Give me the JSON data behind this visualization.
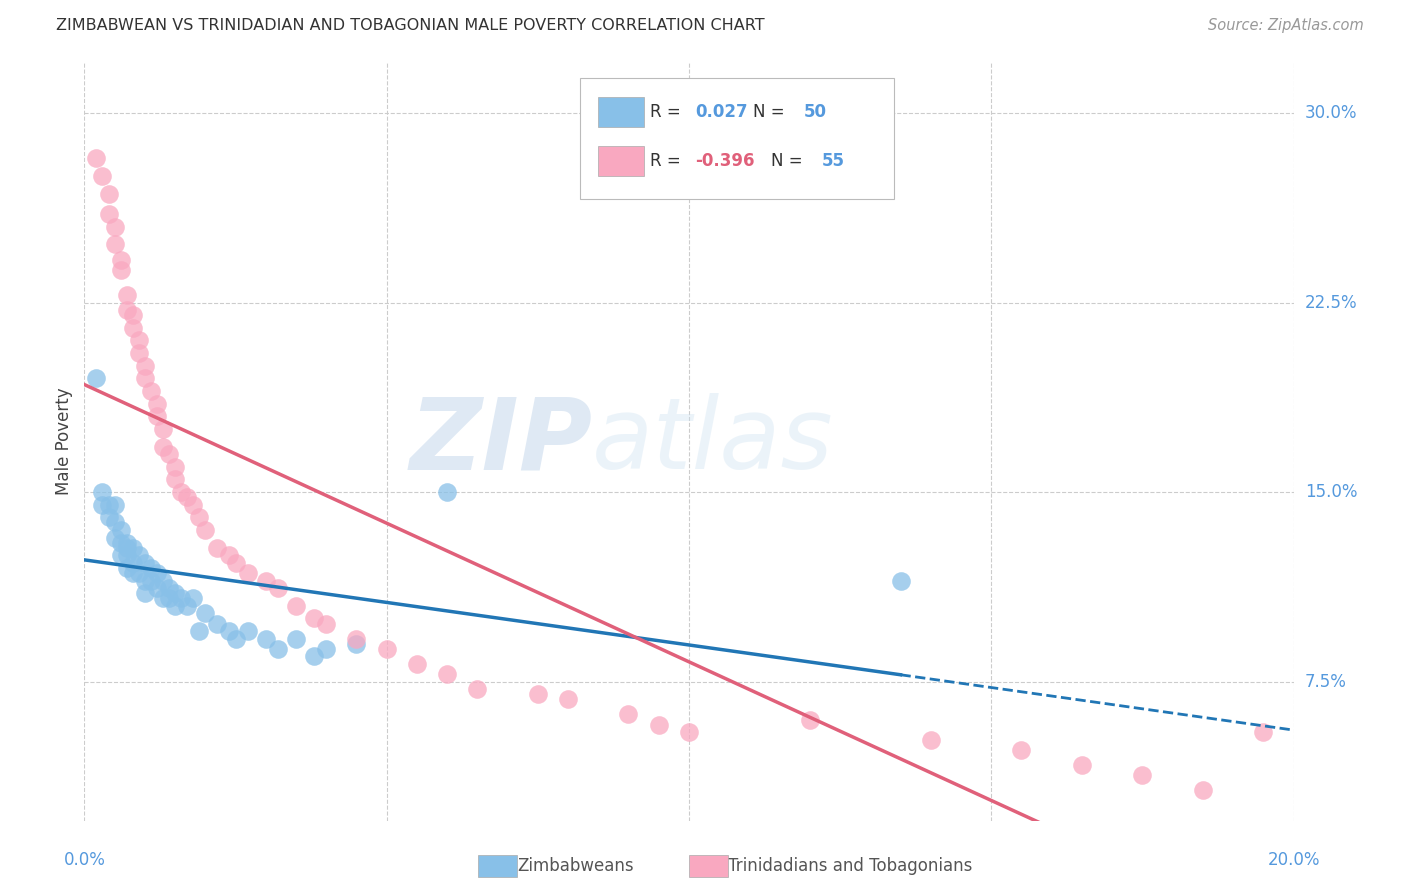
{
  "title": "ZIMBABWEAN VS TRINIDADIAN AND TOBAGONIAN MALE POVERTY CORRELATION CHART",
  "source": "Source: ZipAtlas.com",
  "ylabel": "Male Poverty",
  "ytick_vals": [
    0.075,
    0.15,
    0.225,
    0.3
  ],
  "ytick_labels": [
    "7.5%",
    "15.0%",
    "22.5%",
    "30.0%"
  ],
  "xtick_vals": [
    0.0,
    0.05,
    0.1,
    0.15,
    0.2
  ],
  "xlim": [
    0.0,
    0.2
  ],
  "ylim": [
    0.02,
    0.32
  ],
  "R1": "0.027",
  "N1": "50",
  "R2": "-0.396",
  "N2": "55",
  "color_blue": "#88c0e8",
  "color_pink": "#f9a8c0",
  "color_blue_line": "#2176b5",
  "color_pink_line": "#e0607a",
  "color_axis_labels": "#5599dd",
  "background": "#ffffff",
  "grid_color": "#cccccc",
  "watermark_zip": "ZIP",
  "watermark_atlas": "atlas",
  "zimbabwean_x": [
    0.002,
    0.003,
    0.003,
    0.004,
    0.004,
    0.005,
    0.005,
    0.005,
    0.006,
    0.006,
    0.006,
    0.007,
    0.007,
    0.007,
    0.007,
    0.008,
    0.008,
    0.008,
    0.009,
    0.009,
    0.01,
    0.01,
    0.01,
    0.011,
    0.011,
    0.012,
    0.012,
    0.013,
    0.013,
    0.014,
    0.014,
    0.015,
    0.015,
    0.016,
    0.017,
    0.018,
    0.019,
    0.02,
    0.022,
    0.024,
    0.025,
    0.027,
    0.03,
    0.032,
    0.035,
    0.038,
    0.04,
    0.045,
    0.06,
    0.135
  ],
  "zimbabwean_y": [
    0.195,
    0.15,
    0.145,
    0.145,
    0.14,
    0.145,
    0.138,
    0.132,
    0.135,
    0.13,
    0.125,
    0.13,
    0.128,
    0.125,
    0.12,
    0.128,
    0.122,
    0.118,
    0.125,
    0.118,
    0.122,
    0.115,
    0.11,
    0.12,
    0.115,
    0.118,
    0.112,
    0.115,
    0.108,
    0.112,
    0.108,
    0.11,
    0.105,
    0.108,
    0.105,
    0.108,
    0.095,
    0.102,
    0.098,
    0.095,
    0.092,
    0.095,
    0.092,
    0.088,
    0.092,
    0.085,
    0.088,
    0.09,
    0.15,
    0.115
  ],
  "trinidadian_x": [
    0.002,
    0.003,
    0.004,
    0.004,
    0.005,
    0.005,
    0.006,
    0.006,
    0.007,
    0.007,
    0.008,
    0.008,
    0.009,
    0.009,
    0.01,
    0.01,
    0.011,
    0.012,
    0.012,
    0.013,
    0.013,
    0.014,
    0.015,
    0.015,
    0.016,
    0.017,
    0.018,
    0.019,
    0.02,
    0.022,
    0.024,
    0.025,
    0.027,
    0.03,
    0.032,
    0.035,
    0.038,
    0.04,
    0.045,
    0.05,
    0.055,
    0.06,
    0.065,
    0.075,
    0.08,
    0.09,
    0.095,
    0.1,
    0.12,
    0.14,
    0.155,
    0.165,
    0.175,
    0.185,
    0.195
  ],
  "trinidadian_y": [
    0.282,
    0.275,
    0.268,
    0.26,
    0.255,
    0.248,
    0.242,
    0.238,
    0.228,
    0.222,
    0.22,
    0.215,
    0.21,
    0.205,
    0.2,
    0.195,
    0.19,
    0.185,
    0.18,
    0.175,
    0.168,
    0.165,
    0.16,
    0.155,
    0.15,
    0.148,
    0.145,
    0.14,
    0.135,
    0.128,
    0.125,
    0.122,
    0.118,
    0.115,
    0.112,
    0.105,
    0.1,
    0.098,
    0.092,
    0.088,
    0.082,
    0.078,
    0.072,
    0.07,
    0.068,
    0.062,
    0.058,
    0.055,
    0.06,
    0.052,
    0.048,
    0.042,
    0.038,
    0.032,
    0.055
  ]
}
